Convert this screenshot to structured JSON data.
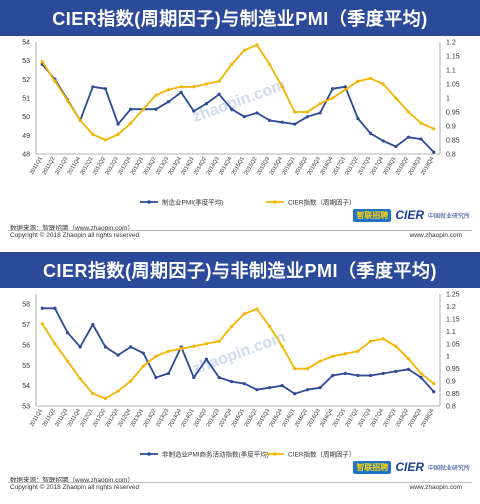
{
  "panels": [
    {
      "title": "CIER指数(周期因子)与制造业PMI（季度平均)",
      "legend_left": "制造业PMI(季度平均)",
      "legend_right": "CIER指数（周期因子）",
      "footer_source": "数据来源：智联招聘（www.zhaopin.com）",
      "footer_copyright": "Copyright © 2018 Zhaopin all rights reserved",
      "footer_url": "www.zhaopin.com",
      "logo_zl": "智联招聘",
      "logo_cier": "CIER",
      "logo_cier_sub": "中国就业研究所",
      "watermark": "zhaopin.com"
    },
    {
      "title": "CIER指数(周期因子)与非制造业PMI（季度平均)",
      "legend_left": "非制造业PMI商务活动指数(季度平均)",
      "legend_right": "CIER指数（周期因子）",
      "footer_source": "数据来源：智联招聘（www.zhaopin.com）",
      "footer_copyright": "Copyright © 2018 Zhaopin all rights reserved",
      "footer_url": "www.zhaopin.com",
      "logo_zl": "智联招聘",
      "logo_cier": "CIER",
      "logo_cier_sub": "中国就业研究所",
      "watermark": "zhaopin.com"
    }
  ],
  "chart_data": [
    {
      "type": "line",
      "title": "CIER指数(周期因子)与制造业PMI（季度平均)",
      "categories": [
        "2011Q1",
        "2011Q2",
        "2011Q3",
        "2011Q4",
        "2012Q1",
        "2012Q2",
        "2012Q3",
        "2012Q4",
        "2013Q1",
        "2013Q2",
        "2013Q3",
        "2013Q4",
        "2014Q1",
        "2014Q2",
        "2014Q3",
        "2014Q4",
        "2015Q1",
        "2015Q2",
        "2015Q3",
        "2015Q4",
        "2016Q1",
        "2016Q2",
        "2016Q3",
        "2016Q4",
        "2017Q1",
        "2017Q2",
        "2017Q3",
        "2017Q4",
        "2018Q1",
        "2018Q2",
        "2018Q3",
        "2018Q4"
      ],
      "left_axis": {
        "ylim": [
          48,
          54
        ],
        "ticks": [
          48,
          49,
          50,
          51,
          52,
          53,
          54
        ]
      },
      "right_axis": {
        "ylim": [
          0.8,
          1.2
        ],
        "ticks": [
          "0.8",
          "0.85",
          "0.9",
          "0.95",
          "1",
          "1.05",
          "1.1",
          "1.15",
          "1.2"
        ]
      },
      "series": [
        {
          "name": "制造业PMI(季度平均)",
          "axis": "left",
          "color": "#2b4a99",
          "values": [
            52.8,
            52.0,
            50.9,
            49.8,
            51.6,
            51.5,
            49.6,
            50.4,
            50.4,
            50.4,
            50.8,
            51.3,
            50.3,
            50.7,
            51.2,
            50.4,
            50.0,
            50.2,
            49.8,
            49.7,
            49.6,
            50.0,
            50.2,
            51.5,
            51.6,
            49.9,
            49.1,
            48.7,
            48.4,
            48.9,
            48.8,
            48.1
          ]
        },
        {
          "name": "CIER指数（周期因子）",
          "axis": "right",
          "color": "#f5b400",
          "values": [
            1.13,
            1.06,
            0.99,
            0.92,
            0.87,
            0.85,
            0.87,
            0.91,
            0.96,
            1.01,
            1.03,
            1.04,
            1.04,
            1.05,
            1.06,
            1.12,
            1.17,
            1.19,
            1.12,
            1.04,
            0.95,
            0.95,
            0.98,
            1.0,
            1.03,
            1.06,
            1.07,
            1.05,
            1.0,
            0.95,
            0.91,
            0.89
          ]
        }
      ]
    },
    {
      "type": "line",
      "title": "CIER指数(周期因子)与非制造业PMI（季度平均)",
      "categories": [
        "2011Q1",
        "2011Q2",
        "2011Q3",
        "2011Q4",
        "2012Q1",
        "2012Q2",
        "2012Q3",
        "2012Q4",
        "2013Q1",
        "2013Q2",
        "2013Q3",
        "2013Q4",
        "2014Q1",
        "2014Q2",
        "2014Q3",
        "2014Q4",
        "2015Q1",
        "2015Q2",
        "2015Q3",
        "2015Q4",
        "2016Q1",
        "2016Q2",
        "2016Q3",
        "2016Q4",
        "2017Q1",
        "2017Q2",
        "2017Q3",
        "2017Q4",
        "2018Q1",
        "2018Q2",
        "2018Q3",
        "2018Q4"
      ],
      "left_axis": {
        "ylim": [
          53,
          58.5
        ],
        "ticks": [
          53,
          54,
          55,
          56,
          57,
          58
        ]
      },
      "right_axis": {
        "ylim": [
          0.8,
          1.25
        ],
        "ticks": [
          "0.8",
          "0.85",
          "0.9",
          "0.95",
          "1",
          "1.05",
          "1.1",
          "1.15",
          "1.2",
          "1.25"
        ]
      },
      "series": [
        {
          "name": "非制造业PMI商务活动指数(季度平均)",
          "axis": "left",
          "color": "#2b4a99",
          "values": [
            57.8,
            57.8,
            56.6,
            55.9,
            57.0,
            55.9,
            55.5,
            55.9,
            55.6,
            54.4,
            54.6,
            55.9,
            54.4,
            55.3,
            54.4,
            54.2,
            54.1,
            53.8,
            53.9,
            54.0,
            53.6,
            53.8,
            53.9,
            54.5,
            54.6,
            54.5,
            54.5,
            54.6,
            54.7,
            54.8,
            54.4,
            53.7
          ]
        },
        {
          "name": "CIER指数（周期因子）",
          "axis": "right",
          "color": "#f5b400",
          "values": [
            1.13,
            1.05,
            0.98,
            0.91,
            0.85,
            0.83,
            0.86,
            0.9,
            0.96,
            1.0,
            1.02,
            1.03,
            1.04,
            1.05,
            1.06,
            1.12,
            1.17,
            1.19,
            1.12,
            1.04,
            0.95,
            0.95,
            0.98,
            1.0,
            1.01,
            1.02,
            1.06,
            1.07,
            1.04,
            0.99,
            0.93,
            0.89
          ]
        }
      ]
    }
  ]
}
